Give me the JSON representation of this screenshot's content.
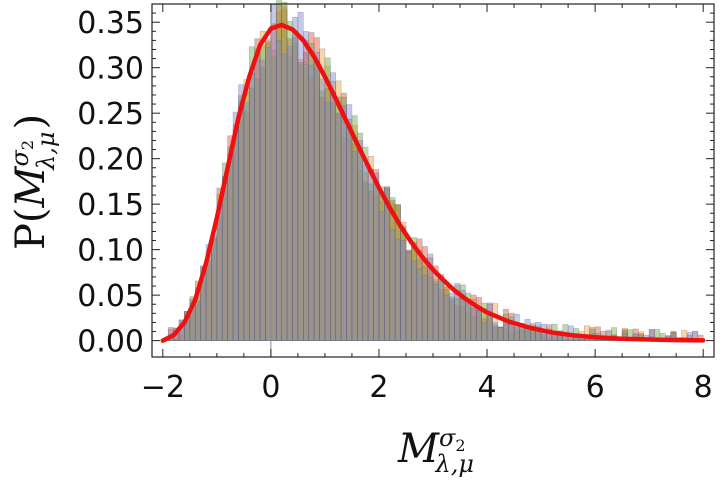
{
  "chart_data": {
    "type": "histogram",
    "title": "",
    "xlabel": {
      "base": "M",
      "sup": "σ",
      "sup_sub": "2",
      "sub": "λ,μ"
    },
    "ylabel": {
      "prefix": "P(",
      "base": "M",
      "sup": "σ",
      "sup_sub": "2",
      "sub": "λ,μ",
      "suffix": ")"
    },
    "xlim": [
      -2.2,
      8.2
    ],
    "ylim": [
      -0.018,
      0.37
    ],
    "xticks": [
      -2,
      0,
      2,
      4,
      6,
      8
    ],
    "xtick_labels": [
      "−2",
      "0",
      "2",
      "4",
      "6",
      "8"
    ],
    "yticks": [
      0,
      0.05,
      0.1,
      0.15,
      0.2,
      0.25,
      0.3,
      0.35
    ],
    "ytick_labels": [
      "0.00",
      "0.05",
      "0.10",
      "0.15",
      "0.20",
      "0.25",
      "0.30",
      "0.35"
    ],
    "grid": false,
    "bin_width": 0.1,
    "bin_start": -2.0,
    "histogram_series": [
      {
        "color": "#e8a33a",
        "seed": 11
      },
      {
        "color": "#e0522f",
        "seed": 29
      },
      {
        "color": "#6fa83d",
        "seed": 47
      },
      {
        "color": "#7f86c8",
        "seed": 83
      }
    ],
    "fit_curve": {
      "color": "#ee1111",
      "x": [
        -2.0,
        -1.8,
        -1.6,
        -1.4,
        -1.2,
        -1.0,
        -0.8,
        -0.6,
        -0.4,
        -0.2,
        0.0,
        0.2,
        0.4,
        0.6,
        0.8,
        1.0,
        1.2,
        1.4,
        1.6,
        1.8,
        2.0,
        2.2,
        2.4,
        2.6,
        2.8,
        3.0,
        3.2,
        3.4,
        3.6,
        3.8,
        4.0,
        4.4,
        4.8,
        5.2,
        5.6,
        6.0,
        6.5,
        7.0,
        7.5,
        8.0
      ],
      "y": [
        0.0,
        0.006,
        0.02,
        0.045,
        0.085,
        0.135,
        0.19,
        0.245,
        0.29,
        0.325,
        0.343,
        0.347,
        0.342,
        0.33,
        0.312,
        0.29,
        0.266,
        0.241,
        0.216,
        0.192,
        0.168,
        0.146,
        0.126,
        0.108,
        0.092,
        0.078,
        0.066,
        0.055,
        0.046,
        0.038,
        0.031,
        0.021,
        0.014,
        0.009,
        0.0058,
        0.0037,
        0.0021,
        0.0012,
        0.0006,
        0.0003
      ]
    }
  }
}
